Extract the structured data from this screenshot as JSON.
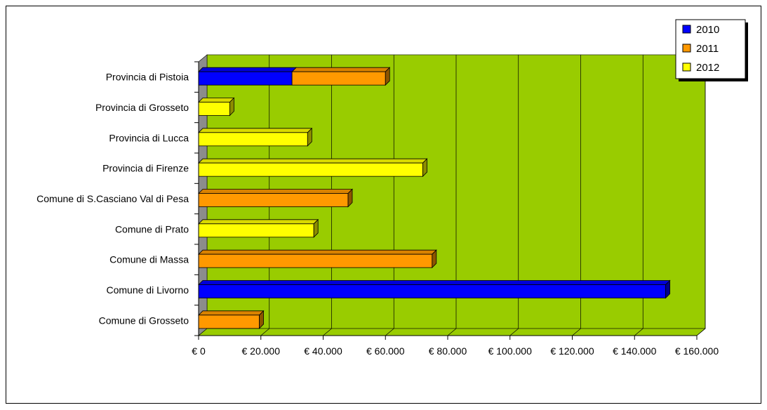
{
  "chart_data": {
    "type": "bar",
    "orientation": "horizontal",
    "stacked": true,
    "categories": [
      "Provincia di Pistoia",
      "Provincia di Grosseto",
      "Provincia di Lucca",
      "Provincia di Firenze",
      "Comune di S.Casciano Val di Pesa",
      "Comune di Prato",
      "Comune di Massa",
      "Comune di Livorno",
      "Comune di Grosseto"
    ],
    "series": [
      {
        "name": "2010",
        "color": "#0000ff",
        "values": [
          30000,
          0,
          0,
          0,
          0,
          0,
          0,
          150000,
          0
        ]
      },
      {
        "name": "2011",
        "color": "#ff9900",
        "values": [
          30000,
          0,
          0,
          0,
          48000,
          0,
          75000,
          0,
          19500
        ]
      },
      {
        "name": "2012",
        "color": "#ffff00",
        "values": [
          0,
          10000,
          35000,
          72000,
          0,
          37000,
          0,
          0,
          0
        ]
      }
    ],
    "xlim": [
      0,
      160000
    ],
    "xticks": [
      "€ 0",
      "€ 20.000",
      "€ 40.000",
      "€ 60.000",
      "€ 80.000",
      "€ 100.000",
      "€ 120.000",
      "€ 140.000",
      "€ 160.000"
    ],
    "xtick_values": [
      0,
      20000,
      40000,
      60000,
      80000,
      100000,
      120000,
      140000,
      160000
    ],
    "grid": true,
    "plot_background": "#99cc00",
    "legend_position": "top-right",
    "three_d": true
  }
}
